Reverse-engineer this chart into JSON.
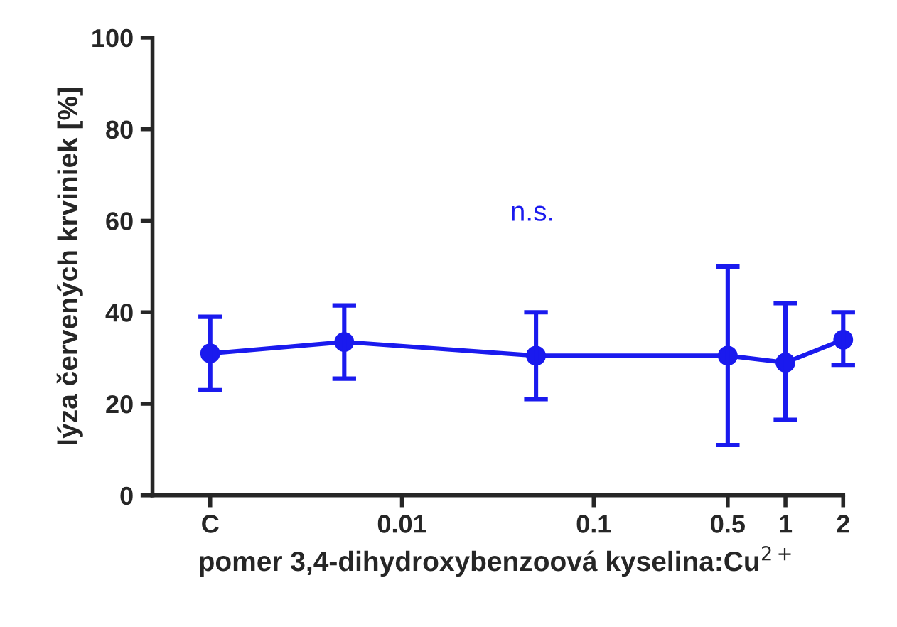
{
  "chart_data": {
    "type": "line",
    "xlabel": "pomer 3,4-dihydroxybenzoová kyselina:Cu$^{2+}$",
    "ylabel": "lýza červených krviniek [%]",
    "x": [
      0.001,
      0.005,
      0.05,
      0.5,
      1,
      2
    ],
    "series": [
      {
        "color": "#1a1aee",
        "values": [
          31,
          33.5,
          30.5,
          30.5,
          29,
          34
        ],
        "errors": [
          [
            23,
            39
          ],
          [
            25.5,
            41.5
          ],
          [
            21,
            40
          ],
          [
            11,
            50
          ],
          [
            16.5,
            42
          ],
          [
            28.5,
            40
          ]
        ]
      }
    ],
    "log": "x",
    "xlim": [
      0.0005,
      2
    ],
    "xticks": [
      {
        "value": 0.001,
        "label": "C"
      },
      0.01,
      0.1,
      0.5,
      1,
      2
    ],
    "ylim": [
      0,
      100
    ],
    "yticks": [
      0,
      20,
      40,
      60,
      80,
      100
    ],
    "grid": false,
    "legend": false,
    "marker": "circle",
    "line_style": "solid",
    "annotations": [
      "n.s."
    ]
  }
}
